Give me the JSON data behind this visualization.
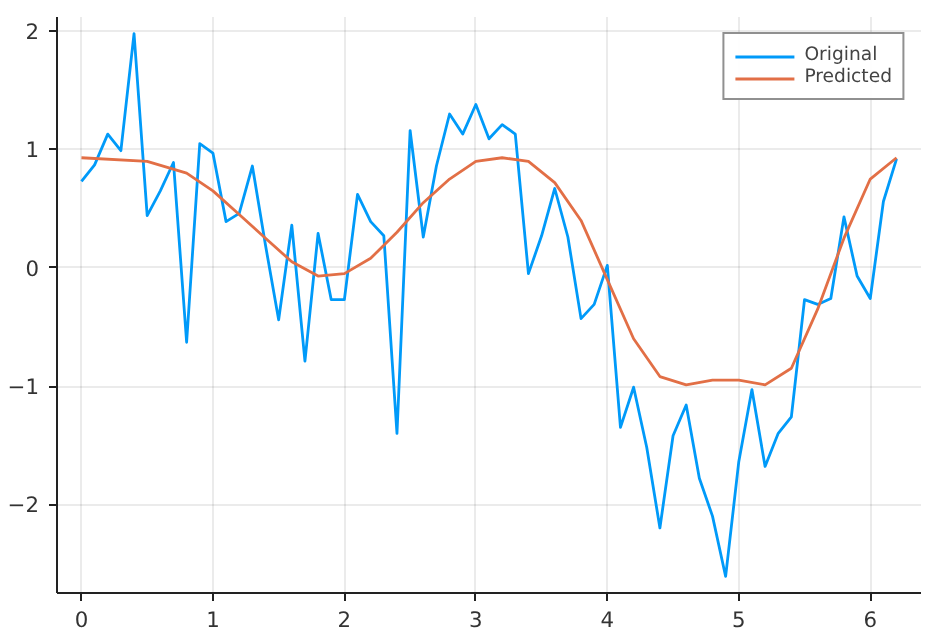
{
  "chart_data": {
    "type": "line",
    "xlim": [
      -0.186,
      6.386
    ],
    "ylim": [
      -2.75,
      2.12
    ],
    "xticks": [
      0,
      1,
      2,
      3,
      4,
      5,
      6
    ],
    "yticks": [
      {
        "value": -2,
        "label": "−2"
      },
      {
        "value": -1,
        "label": "−1"
      },
      0,
      1,
      2
    ],
    "grid": true,
    "legend": "top right",
    "line_style": "solid",
    "marker": "none",
    "series": [
      {
        "name": "Original",
        "color": "#009af9",
        "x": [
          0,
          0.1,
          0.2,
          0.3,
          0.4,
          0.5,
          0.6,
          0.7,
          0.8,
          0.9,
          1.0,
          1.1,
          1.2,
          1.3,
          1.4,
          1.5,
          1.6,
          1.7,
          1.8,
          1.9,
          2.0,
          2.1,
          2.2,
          2.3,
          2.4,
          2.5,
          2.6,
          2.7,
          2.8,
          2.9,
          3.0,
          3.1,
          3.2,
          3.3,
          3.4,
          3.5,
          3.6,
          3.7,
          3.8,
          3.9,
          4.0,
          4.1,
          4.2,
          4.3,
          4.4,
          4.5,
          4.6,
          4.7,
          4.8,
          4.9,
          5.0,
          5.1,
          5.2,
          5.3,
          5.4,
          5.5,
          5.6,
          5.7,
          5.8,
          5.9,
          6.0,
          6.1,
          6.2
        ],
        "values": [
          0.73,
          0.87,
          1.13,
          0.99,
          1.98,
          0.44,
          0.65,
          0.89,
          -0.63,
          1.05,
          0.97,
          0.39,
          0.46,
          0.86,
          0.19,
          -0.44,
          0.36,
          -0.79,
          0.29,
          -0.27,
          -0.27,
          0.62,
          0.39,
          0.27,
          -1.4,
          1.16,
          0.26,
          0.86,
          1.3,
          1.13,
          1.38,
          1.09,
          1.21,
          1.13,
          -0.05,
          0.27,
          0.67,
          0.26,
          -0.43,
          -0.31,
          0.02,
          -1.35,
          -1.01,
          -1.52,
          -2.2,
          -1.42,
          -1.16,
          -1.78,
          -2.1,
          -2.61,
          -1.64,
          -1.03,
          -1.68,
          -1.4,
          -1.26,
          -0.27,
          -0.31,
          -0.26,
          0.43,
          -0.07,
          -0.26,
          0.56,
          0.92
        ]
      },
      {
        "name": "Predicted",
        "color": "#e26f46",
        "x": [
          0,
          0.5,
          0.8,
          1.0,
          1.2,
          1.4,
          1.6,
          1.8,
          2.0,
          2.2,
          2.4,
          2.6,
          2.8,
          3.0,
          3.2,
          3.4,
          3.6,
          3.8,
          4.0,
          4.2,
          4.4,
          4.6,
          4.8,
          5.0,
          5.2,
          5.4,
          5.6,
          5.8,
          6.0,
          6.2
        ],
        "values": [
          0.93,
          0.9,
          0.8,
          0.65,
          0.45,
          0.25,
          0.05,
          -0.07,
          -0.05,
          0.08,
          0.3,
          0.55,
          0.75,
          0.9,
          0.93,
          0.9,
          0.72,
          0.4,
          -0.1,
          -0.6,
          -0.92,
          -0.99,
          -0.95,
          -0.95,
          -0.99,
          -0.85,
          -0.35,
          0.25,
          0.75,
          0.93
        ]
      }
    ]
  }
}
